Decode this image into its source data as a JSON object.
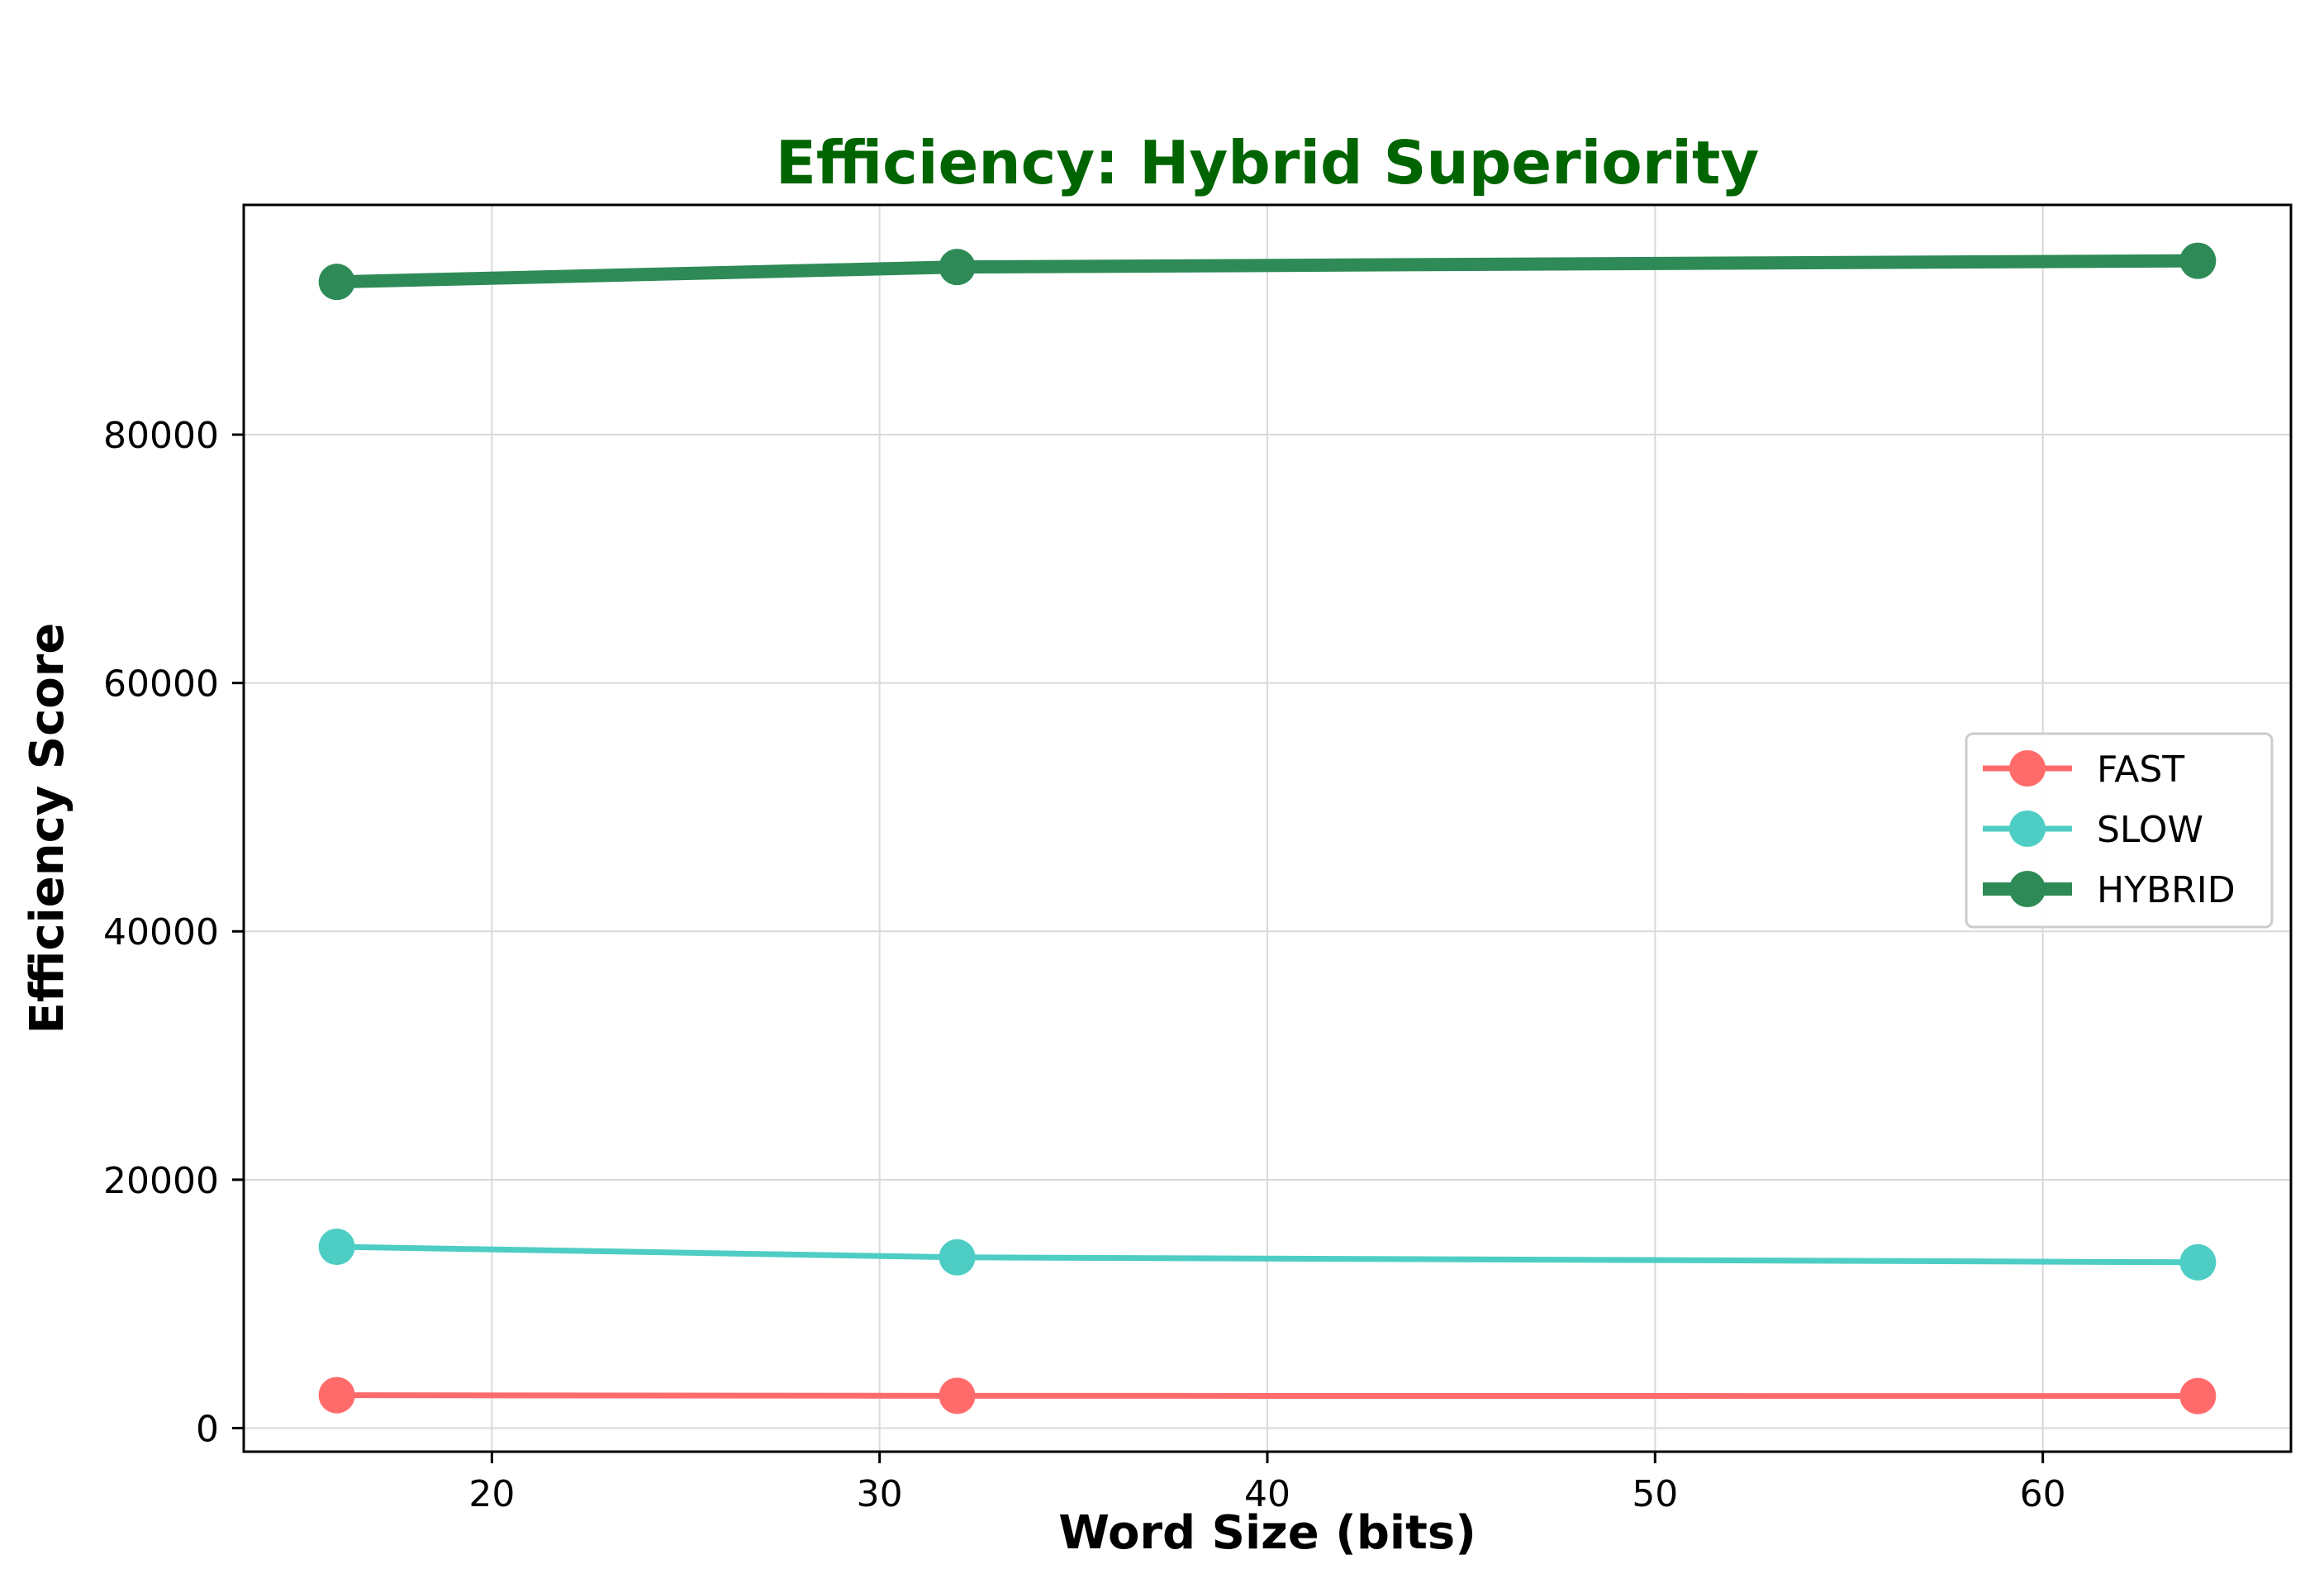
{
  "chart_data": {
    "type": "line",
    "title": "Efficiency: Hybrid Superiority",
    "title_color": "#006400",
    "xlabel": "Word Size (bits)",
    "ylabel": "Efficiency Score",
    "x": [
      16,
      32,
      64
    ],
    "xlim": [
      13.6,
      66.4
    ],
    "ylim": [
      -1900,
      98500
    ],
    "xticks": [
      20,
      30,
      40,
      50,
      60
    ],
    "yticks": [
      0,
      20000,
      40000,
      60000,
      80000
    ],
    "grid": true,
    "legend_position": "center-right",
    "series": [
      {
        "name": "FAST",
        "values": [
          2650,
          2600,
          2580
        ],
        "color": "#ff6b6b",
        "line_style": "normal"
      },
      {
        "name": "SLOW",
        "values": [
          14600,
          13750,
          13350
        ],
        "color": "#4ecdc4",
        "line_style": "normal"
      },
      {
        "name": "HYBRID",
        "values": [
          92300,
          93500,
          94000
        ],
        "color": "#2e8b57",
        "line_style": "thick"
      }
    ]
  }
}
